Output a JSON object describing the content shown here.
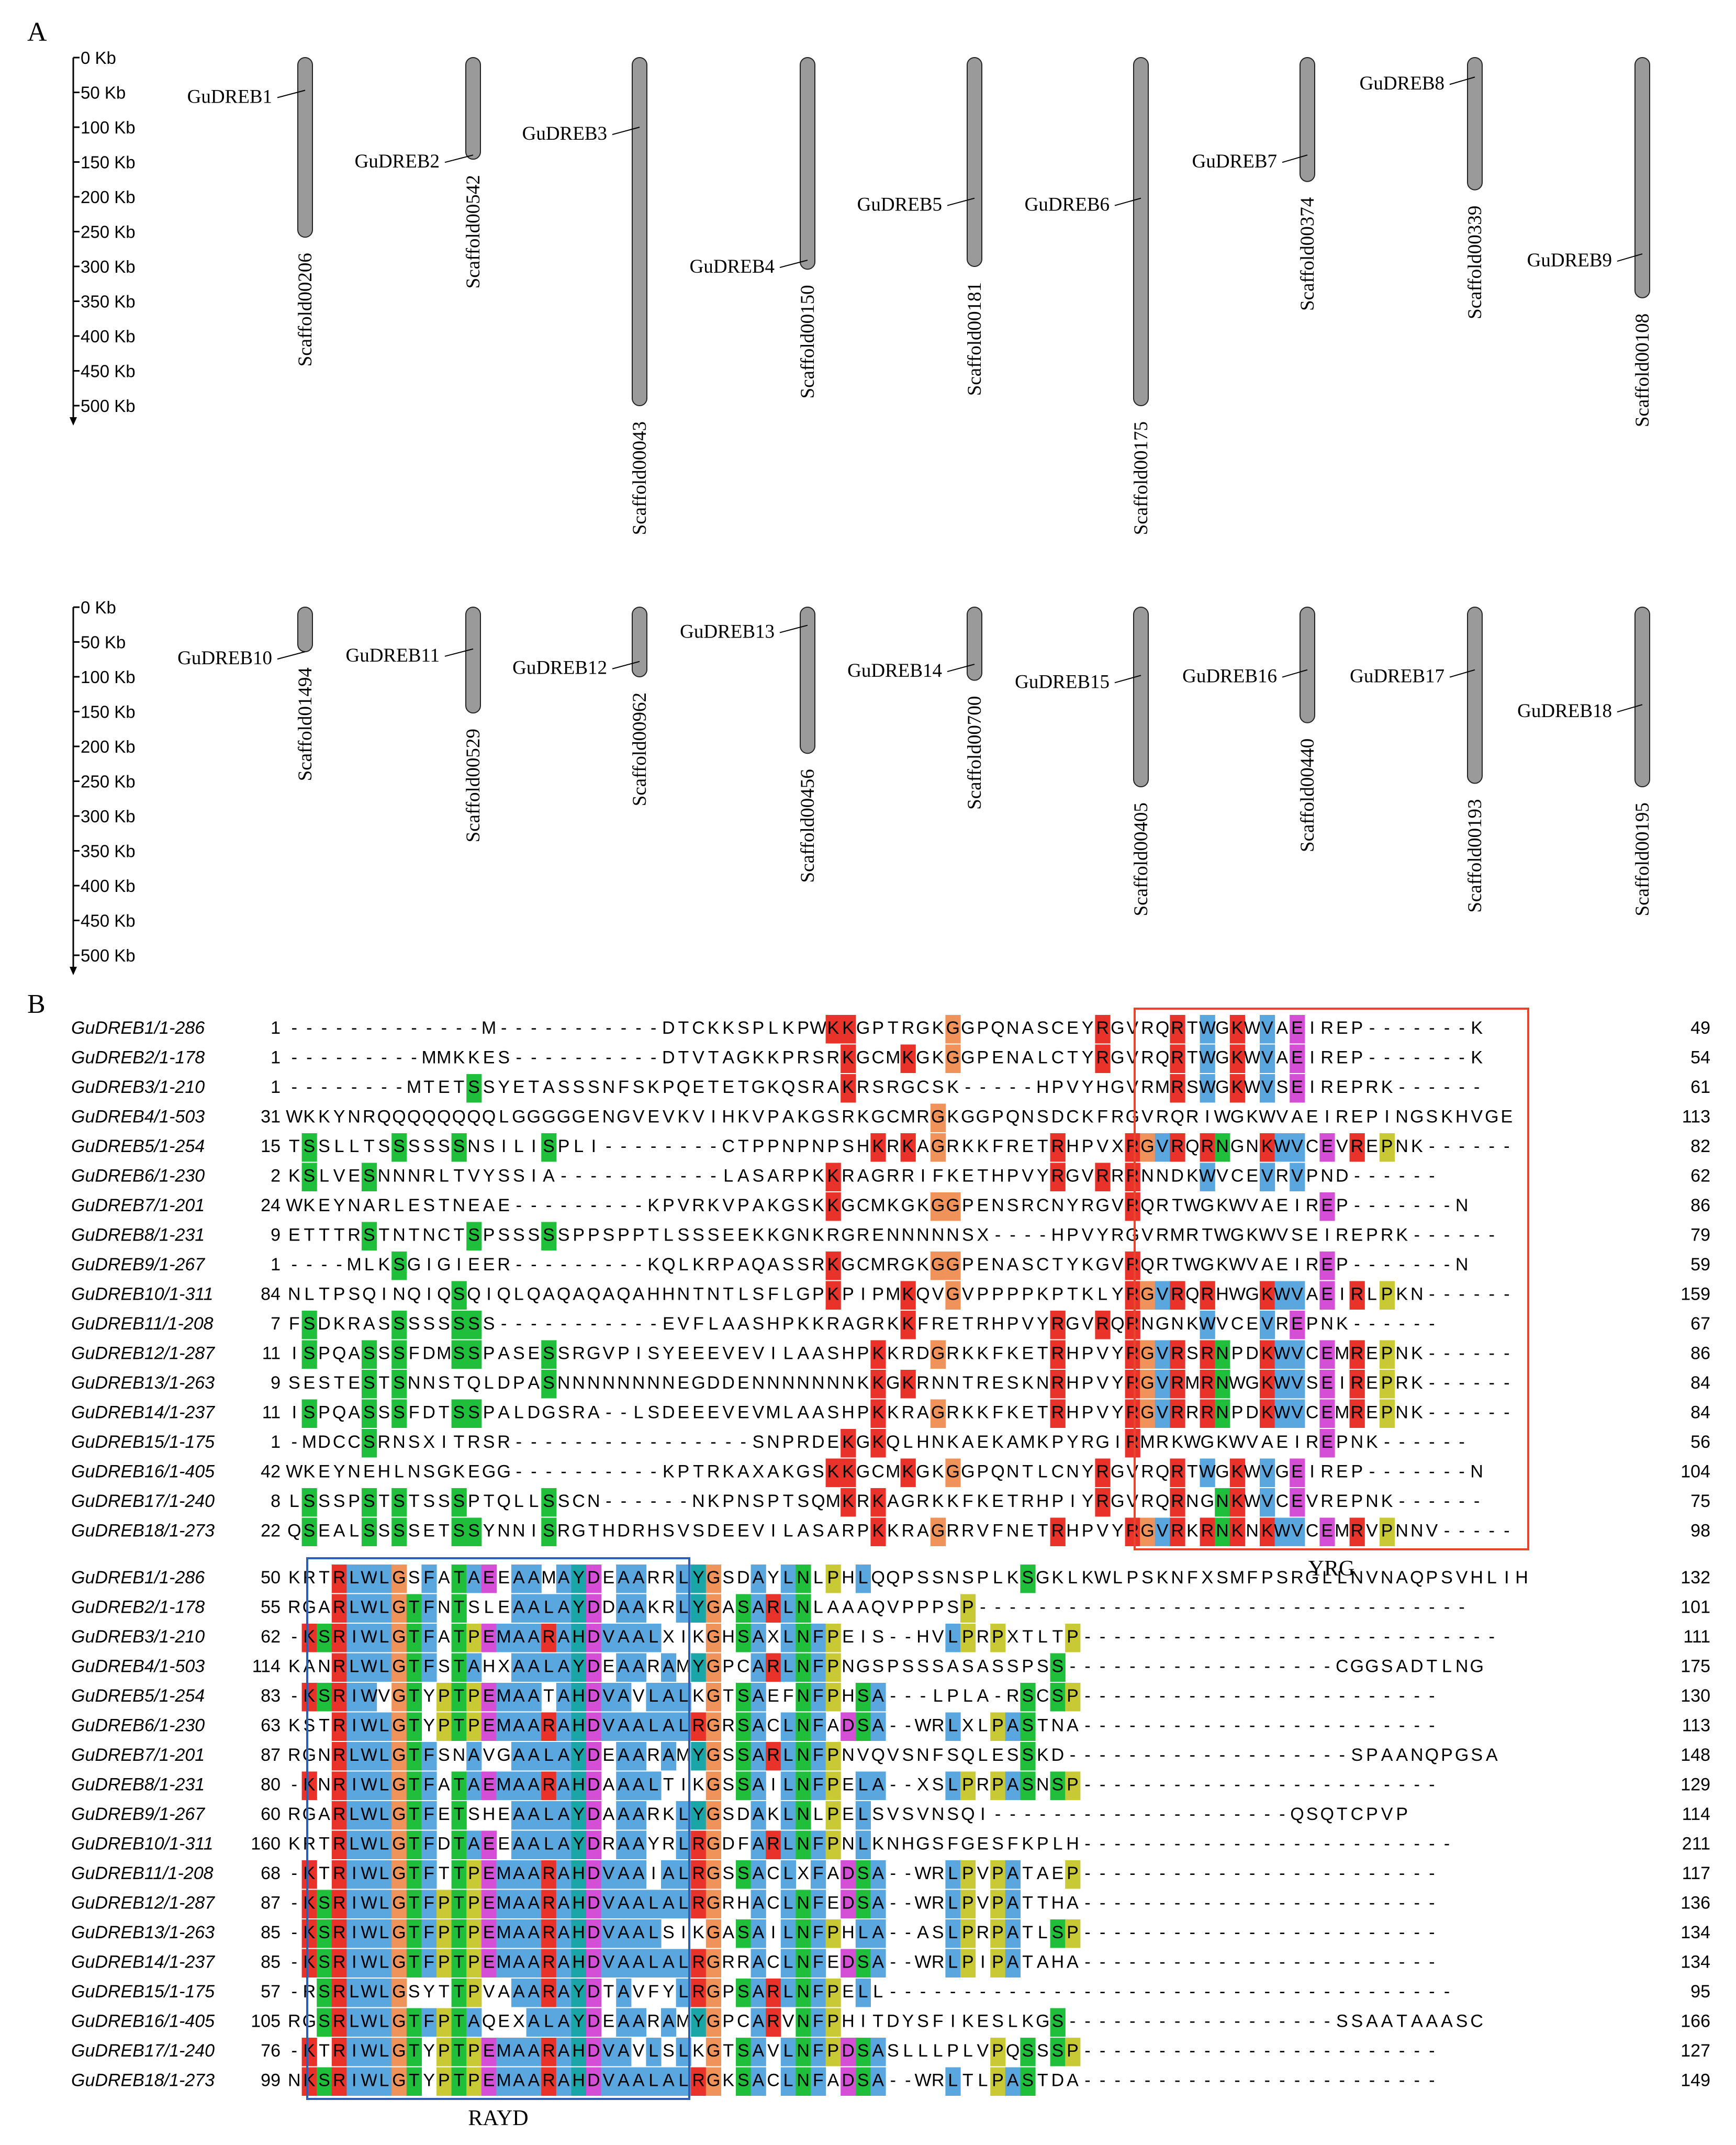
{
  "panel_a": {
    "label": "A",
    "scale_labels": [
      "0 Kb",
      "50 Kb",
      "100 Kb",
      "150 Kb",
      "200 Kb",
      "250 Kb",
      "300 Kb",
      "350 Kb",
      "400 Kb",
      "450 Kb",
      "500 Kb"
    ],
    "rows": [
      [
        {
          "gene": "GuDREB1",
          "scaffold": "Scaffold00206",
          "length_kb": 258,
          "gene_pos_kb": 47
        },
        {
          "gene": "GuDREB2",
          "scaffold": "Scaffold00542",
          "length_kb": 146,
          "gene_pos_kb": 140
        },
        {
          "gene": "GuDREB3",
          "scaffold": "Scaffold00043",
          "length_kb": 500,
          "gene_pos_kb": 100
        },
        {
          "gene": "GuDREB4",
          "scaffold": "Scaffold00150",
          "length_kb": 304,
          "gene_pos_kb": 291
        },
        {
          "gene": "GuDREB5",
          "scaffold": "Scaffold00181",
          "length_kb": 300,
          "gene_pos_kb": 202
        },
        {
          "gene": "GuDREB6",
          "scaffold": "Scaffold00175",
          "length_kb": 500,
          "gene_pos_kb": 202
        },
        {
          "gene": "GuDREB7",
          "scaffold": "Scaffold00374",
          "length_kb": 178,
          "gene_pos_kb": 140
        },
        {
          "gene": "GuDREB8",
          "scaffold": "Scaffold00339",
          "length_kb": 190,
          "gene_pos_kb": 28
        },
        {
          "gene": "GuDREB9",
          "scaffold": "Scaffold00108",
          "length_kb": 345,
          "gene_pos_kb": 282
        }
      ],
      [
        {
          "gene": "GuDREB10",
          "scaffold": "Scaffold01494",
          "length_kb": 64,
          "gene_pos_kb": 64
        },
        {
          "gene": "GuDREB11",
          "scaffold": "Scaffold00529",
          "length_kb": 152,
          "gene_pos_kb": 60
        },
        {
          "gene": "GuDREB12",
          "scaffold": "Scaffold00962",
          "length_kb": 100,
          "gene_pos_kb": 78
        },
        {
          "gene": "GuDREB13",
          "scaffold": "Scaffold00456",
          "length_kb": 210,
          "gene_pos_kb": 26
        },
        {
          "gene": "GuDREB14",
          "scaffold": "Scaffold00700",
          "length_kb": 105,
          "gene_pos_kb": 82
        },
        {
          "gene": "GuDREB15",
          "scaffold": "Scaffold00405",
          "length_kb": 258,
          "gene_pos_kb": 98
        },
        {
          "gene": "GuDREB16",
          "scaffold": "Scaffold00440",
          "length_kb": 166,
          "gene_pos_kb": 90
        },
        {
          "gene": "GuDREB17",
          "scaffold": "Scaffold00193",
          "length_kb": 253,
          "gene_pos_kb": 90
        },
        {
          "gene": "GuDREB18",
          "scaffold": "Scaffold00195",
          "length_kb": 258,
          "gene_pos_kb": 140
        }
      ]
    ]
  },
  "panel_b": {
    "label": "B",
    "motifs": [
      "YRG",
      "RAYD"
    ],
    "blocks": [
      {
        "motif_label": "YRG",
        "rows": [
          {
            "name": "GuDREB1/1-286",
            "start": "1",
            "seq": "-------------M-----------DTCKKSPLKPWKKGPTRGKGGPQNASCEYRGVRQRTWGKWVAEIREP-------K",
            "end": "49"
          },
          {
            "name": "GuDREB2/1-178",
            "start": "1",
            "seq": "---------MMKKES----------DTVTAGKKPRSRKGCMKGKGGPENALCTYRGVRQRTWGKWVAEIREP-------K",
            "end": "54"
          },
          {
            "name": "GuDREB3/1-210",
            "start": "1",
            "seq": "--------MTETSSYETASSSNFSKPQETETGKQSRAKRSRGCSK-----HPVYHGVRMRSWGKWVSEIREPRK------",
            "end": "61"
          },
          {
            "name": "GuDREB4/1-503",
            "start": "31",
            "seq": "WKKYNRQQQQQQQQLGGGGGENGVEVKVIHKVPAKGSRKGCMRGKGGPQNSDCKFRGVRQRIWGKWVAEIREPINGSKHVGE",
            "end": "113"
          },
          {
            "name": "GuDREB5/1-254",
            "start": "15",
            "seq": "TSSLLTSSSSSSNSILISPLI--------CTPPNPNPSHKRKAGRKKFRETRHPVXRGVRQRNGNKWVCEVREPNK------",
            "end": "82"
          },
          {
            "name": "GuDREB6/1-230",
            "start": "2",
            "seq": "KSLVESNNNRLTVYSSIA-----------LASARPKKRAGRRIFKETHPVYRGVRRRNNDKWVCEVRVPND------",
            "end": "62"
          },
          {
            "name": "GuDREB7/1-201",
            "start": "24",
            "seq": "WKEYNARLESTNEAE---------KPVRKVPAKGSKKGCMKGKGGPENSRCNYRGVRQRTWGKWVAEIREP-------N",
            "end": "86"
          },
          {
            "name": "GuDREB8/1-231",
            "start": "9",
            "seq": "ETTTRSTNTNCTSPSSSSSPPSPPTLSSSEEKKGNKRGRENNNNNSX----HPVYRGVRMRTWGKWVSEIREPRK------",
            "end": "79"
          },
          {
            "name": "GuDREB9/1-267",
            "start": "1",
            "seq": "----MLKSGIGIEER---------KQLKRPAQASSRKGCMRGKGGPENASCTYKGVRQRTWGKWVAEIREP-------N",
            "end": "59"
          },
          {
            "name": "GuDREB10/1-311",
            "start": "84",
            "seq": "NLTPSQINQIQSQIQLQAQAQAQAHHNTNTLSFLGPKPIPMKQVGVPPPPKPTKLYRGVRQRHWGKWVAEIRLPKN------",
            "end": "159"
          },
          {
            "name": "GuDREB11/1-208",
            "start": "7",
            "seq": "FSDKRASSSSSSSS-----------EVFLAASHPKKRAGRKKFRETRHPVYRGVRQRNGNKWVCEVREPNK------",
            "end": "67"
          },
          {
            "name": "GuDREB12/1-287",
            "start": "11",
            "seq": "ISPQASSSFDMSSPASESSRGVPISYEEEVEVILAASHPKKRDGRKKFKETRHPVYRGVRSRNPDKWVCEMREPNK------",
            "end": "86"
          },
          {
            "name": "GuDREB13/1-263",
            "start": "9",
            "seq": "SESTESTSNNSTQLDPASNNNNNNNNEGDDENNNNNNNKKGKRNNTRESKNRHPVYRGVRMRNWGKWVSEIREPRK------",
            "end": "84"
          },
          {
            "name": "GuDREB14/1-237",
            "start": "11",
            "seq": "ISPQASSSFDTSSPALDGSRA--LSDEEEVEVMLAASHPKKRAGRKKFKETRHPVYRGVRRRNPDKWVCEMREPNK------",
            "end": "84"
          },
          {
            "name": "GuDREB15/1-175",
            "start": "1",
            "seq": "-MDCCSRNSXITRSR----------------SNPRDEKGKQLHNKAEKAMKPYRGIRMRKWGKWVAEIREPNK------",
            "end": "56"
          },
          {
            "name": "GuDREB16/1-405",
            "start": "42",
            "seq": "WKEYNEHLNSGKEGG----------KPTRKAXAKGSKKGCMKGKGGPQNTLCNYRGVRQRTWGKWVGEIREP-------N",
            "end": "104"
          },
          {
            "name": "GuDREB17/1-240",
            "start": "8",
            "seq": "LSSSPSTSTSSSPTQLLSSCN------NKPNSPTSQMKRKAGRKKFKETRHPIYRGVRQRNGNKWVCEVREPNK------",
            "end": "75"
          },
          {
            "name": "GuDREB18/1-273",
            "start": "22",
            "seq": "QSEALSSSSETSSYNNISRGTHDRHSVSDEEVILASARPKKRAGRRVFNETRHPVYRGVRKRNKNKWVCEMRVPNNV-----",
            "end": "98"
          }
        ]
      },
      {
        "motif_label": "RAYD",
        "rows": [
          {
            "name": "GuDREB1/1-286",
            "start": "50",
            "seq": "KRTRLWLGSFATAEEAAMAYDEAARRLYGSDAYLNLPHLQQPSSNSPLKSGKLKWLPSKNFXSMFPSRGLLNVNAQPSVHLIH",
            "end": "132"
          },
          {
            "name": "GuDREB2/1-178",
            "start": "55",
            "seq": "RGARLWLGTFNTSLEAALAYDDAAKRLYGASARLNLAAAQVPPPSP---------------------------------",
            "end": "101"
          },
          {
            "name": "GuDREB3/1-210",
            "start": "62",
            "seq": "-KSRIWLGTFATPEMAARAHDVAALXIKGHSAXLNFPEIS--HVLPRPXTLTP----------------------------",
            "end": "111"
          },
          {
            "name": "GuDREB4/1-503",
            "start": "114",
            "seq": "KANRLWLGTFSTAHXAALAYDEAARAMYGPCARLNFPNGSPSSSASASSPSS------------------CGGSADTLNG",
            "end": "175"
          },
          {
            "name": "GuDREB5/1-254",
            "start": "83",
            "seq": "-KSRIWVGTYPTPEMAATAHDVAVLALKGTSAEFNFPHSA---LPLA-RSCSP------------------------",
            "end": "130"
          },
          {
            "name": "GuDREB6/1-230",
            "start": "63",
            "seq": "KSTRIWLGTYPTPEMAARAHDVAALALRGRSACLNFADSA--WRLXLPASTNA------------------------",
            "end": "113"
          },
          {
            "name": "GuDREB7/1-201",
            "start": "87",
            "seq": "RGNRLWLGTFSNAVGAALAYDEAARAMYGSSARLNFPNVQVSNFSQLESSKD-------------------SPAANQPGSA",
            "end": "148"
          },
          {
            "name": "GuDREB8/1-231",
            "start": "80",
            "seq": "-KNRIWLGTFATAEMAARAHDAAALTIKGSSAILNFPELA--XSLPRPASNSP------------------------",
            "end": "129"
          },
          {
            "name": "GuDREB9/1-267",
            "start": "60",
            "seq": "RGARLWLGTFETSHEAALAYDAAARKLYGSDAKLNLPELSVSVNSQI--------------------QSQTCPVP",
            "end": "114"
          },
          {
            "name": "GuDREB10/1-311",
            "start": "160",
            "seq": "KRTRLWLGTFDTAEEAALAYDRAAYRLRGDFARLNFPNLKNHGSFGESFKPLH-------------------------",
            "end": "211"
          },
          {
            "name": "GuDREB11/1-208",
            "start": "68",
            "seq": "-KTRIWLGTFTTPEMAARAHDVAAIALRGSSACLXFADSA--WRLPVPATAEP------------------------",
            "end": "117"
          },
          {
            "name": "GuDREB12/1-287",
            "start": "87",
            "seq": "-KSRIWLGTFPTPEMAARAHDVAALALRGRHACLNFEDSA--WRLPVPATTHA------------------------",
            "end": "136"
          },
          {
            "name": "GuDREB13/1-263",
            "start": "85",
            "seq": "-KSRIWLGTFPTPEMAARAHDVAALSIKGASAILNFPHLA--ASLPRPATLSP------------------------",
            "end": "134"
          },
          {
            "name": "GuDREB14/1-237",
            "start": "85",
            "seq": "-KSRIWLGTFPTPEMAARAHDVAALALRGRRACLNFEDSA--WRLPIPATAHA------------------------",
            "end": "134"
          },
          {
            "name": "GuDREB15/1-175",
            "start": "57",
            "seq": "-RSRLWLGSYTTPVAAARAYDTAVFYLRGPSARLNFPELL--------------------------------------",
            "end": "95"
          },
          {
            "name": "GuDREB16/1-405",
            "start": "105",
            "seq": "RGSRLWLGTFPTAQEXALAYDEAARAMYGPCARVNFPHITDYSFIKESLKGS------------------SSAATAAASC",
            "end": "166"
          },
          {
            "name": "GuDREB17/1-240",
            "start": "76",
            "seq": "-KTRIWLGTYPTPEMAARAHDVAVLSLKGTSAVLNFPDSASLLLPLVPQSSSP------------------------",
            "end": "127"
          },
          {
            "name": "GuDREB18/1-273",
            "start": "99",
            "seq": "NKSRIWLGTYPTPEMAARAHDVAALALRGKSACLNFADSA--WRLTLPASTDA------------------------",
            "end": "149"
          }
        ]
      }
    ]
  },
  "colors": {
    "chromosome_fill": "#9a9a9a",
    "yrg_box": "#e8452c",
    "rayd_box": "#2f5fb5",
    "aa_red": "#e8322a",
    "aa_blue": "#5aa7e0",
    "aa_green": "#1fbf3c",
    "aa_orange": "#f0935a",
    "aa_magenta": "#d44fd6",
    "aa_teal": "#1aa6a6",
    "aa_yellow": "#c9c935"
  }
}
